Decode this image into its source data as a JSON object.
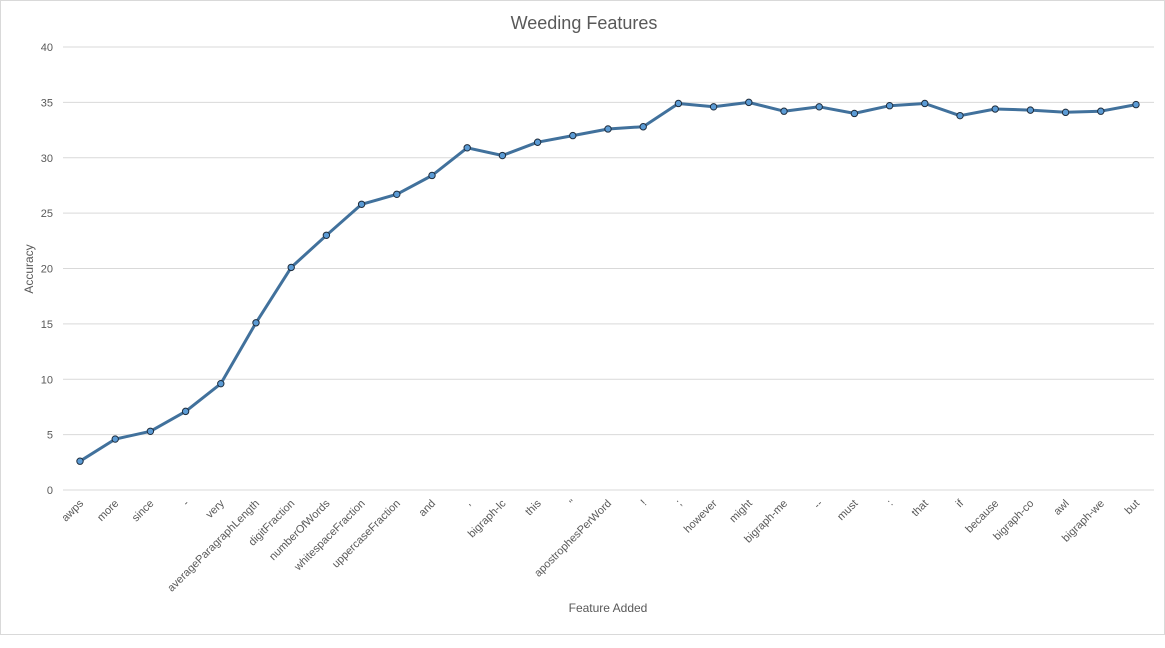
{
  "chart_data": {
    "type": "line",
    "title": "Weeding Features",
    "xlabel": "Feature Added",
    "ylabel": "Accuracy",
    "ylim": [
      0,
      40
    ],
    "yticks": [
      0,
      5,
      10,
      15,
      20,
      25,
      30,
      35,
      40
    ],
    "grid": true,
    "legend": "none",
    "line_color": "#41719c",
    "marker_fill": "#5b9bd5",
    "categories": [
      "awps",
      "more",
      "since",
      "-",
      "very",
      "averageParagraphLength",
      "digitFraction",
      "numberOfWords",
      "whitespaceFraction",
      "uppercaseFraction",
      "and",
      ",",
      "bigraph-lc",
      "this",
      "\"",
      "apostrophesPerWord",
      "!",
      ";",
      "however",
      "might",
      "bigraph-me",
      "--",
      "must",
      ":",
      "that",
      "if",
      "because",
      "bigraph-co",
      "awl",
      "bigraph-we",
      "but"
    ],
    "series": [
      {
        "values": [
          2.6,
          4.6,
          5.3,
          7.1,
          9.6,
          15.1,
          20.1,
          23.0,
          25.8,
          26.7,
          28.4,
          30.9,
          30.2,
          31.4,
          32.0,
          32.6,
          32.8,
          34.9,
          34.6,
          35.0,
          34.2,
          34.6,
          34.0,
          34.7,
          34.9,
          33.8,
          34.4,
          34.3,
          34.1,
          34.2,
          34.8
        ]
      }
    ]
  }
}
